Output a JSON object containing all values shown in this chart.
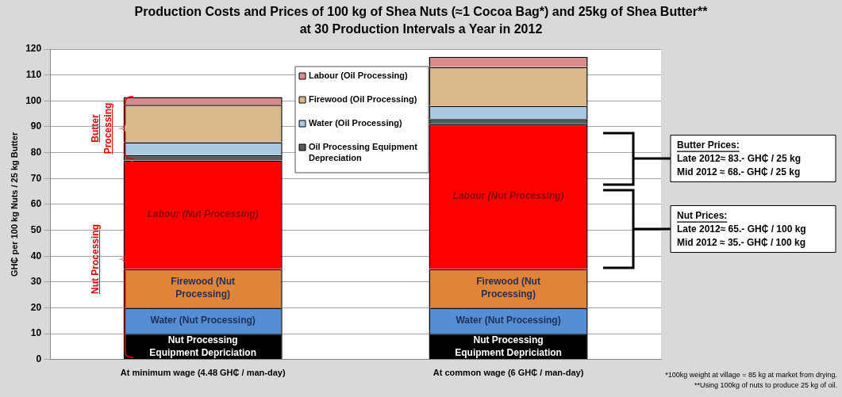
{
  "chart_data": {
    "type": "bar",
    "stacked": true,
    "title": "Production Costs and Prices of 100 kg of Shea Nuts (≈1 Cocoa Bag*) and 25kg of Shea Butter**",
    "subtitle": "at 30 Production Intervals a Year in 2012",
    "ylabel": "GH₵ per 100 kg Nuts / 25 kg Butter",
    "categories": [
      "At minimum wage (4.48 GH₵ / man-day)",
      "At common wage (6 GH₵ / man-day)"
    ],
    "series": [
      {
        "name": "Nut Processing Equipment Depriciation",
        "color": "#000000",
        "values": [
          10,
          10
        ]
      },
      {
        "name": "Water (Nut Processing)",
        "color": "#558ed5",
        "values": [
          10,
          10
        ]
      },
      {
        "name": "Firewood (Nut Processing)",
        "color": "#e0843a",
        "values": [
          15,
          15
        ]
      },
      {
        "name": "Labour (Nut Processing)",
        "color": "#ff0000",
        "values": [
          42,
          56
        ]
      },
      {
        "name": "Oil Processing Equipment Depreciation",
        "color": "#5a5a5a",
        "values": [
          2,
          2
        ]
      },
      {
        "name": "Water (Oil Processing)",
        "color": "#a8c8e0",
        "values": [
          5,
          5
        ]
      },
      {
        "name": "Firewood (Oil Processing)",
        "color": "#d9b98a",
        "values": [
          14.5,
          15
        ]
      },
      {
        "name": "Labour (Oil Processing)",
        "color": "#d98a8a",
        "values": [
          3,
          4
        ]
      }
    ],
    "ylim": [
      0,
      120
    ],
    "yticks": [
      0,
      10,
      20,
      30,
      40,
      50,
      60,
      70,
      80,
      90,
      100,
      110,
      120
    ],
    "grid": "y",
    "legend": "top",
    "annotations": [
      "Butter Processing",
      "Nut Processing",
      "Butter Prices:\nLate 2012≈ 83.- GH₵ / 25 kg\nMid 2012 ≈ 68.- GH₵ / 25 kg",
      "Nut Prices:\nLate 2012≈ 65.- GH₵ / 100 kg\nMid 2012 ≈ 35.- GH₵ / 100 kg",
      "*100kg weight at village = 85 kg at market from drying.",
      "**Using 100kg of nuts to produce 25 kg of oil."
    ]
  }
}
